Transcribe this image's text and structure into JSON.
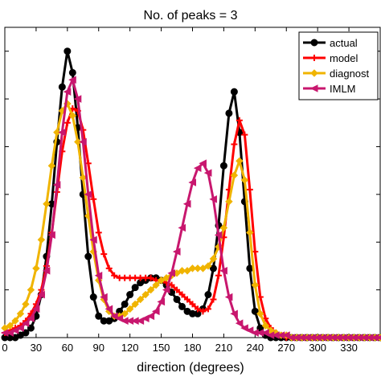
{
  "chart_data": {
    "type": "line",
    "title": "No. of peaks = 3",
    "xlabel": "direction (degrees)",
    "ylabel": "",
    "xlim": [
      0,
      360
    ],
    "ylim": [
      0,
      1.3
    ],
    "xticks": [
      "0",
      "30",
      "60",
      "90",
      "120",
      "150",
      "180",
      "210",
      "240",
      "270",
      "300",
      "330"
    ],
    "xtick_values": [
      0,
      30,
      60,
      90,
      120,
      150,
      180,
      210,
      240,
      270,
      300,
      330
    ],
    "legend_position": "top-right",
    "grid": false,
    "series": [
      {
        "name": "actual",
        "color": "#000000",
        "marker": "circle",
        "x": [
          0,
          5,
          10,
          15,
          20,
          25,
          30,
          35,
          40,
          45,
          50,
          55,
          60,
          65,
          70,
          75,
          80,
          85,
          90,
          95,
          100,
          105,
          110,
          115,
          120,
          125,
          130,
          135,
          140,
          145,
          150,
          155,
          160,
          165,
          170,
          175,
          180,
          185,
          190,
          195,
          200,
          205,
          210,
          215,
          220,
          225,
          230,
          235,
          240,
          245,
          250,
          255,
          260,
          265,
          270,
          275,
          280,
          285,
          290,
          295,
          300,
          305,
          310,
          315,
          320,
          325,
          330,
          335,
          340,
          345,
          350,
          355,
          360
        ],
        "y": [
          0.0,
          0.0,
          0.0,
          0.01,
          0.02,
          0.04,
          0.09,
          0.18,
          0.34,
          0.56,
          0.82,
          1.05,
          1.2,
          1.11,
          0.88,
          0.6,
          0.34,
          0.17,
          0.09,
          0.07,
          0.07,
          0.08,
          0.11,
          0.14,
          0.18,
          0.21,
          0.23,
          0.24,
          0.25,
          0.25,
          0.24,
          0.22,
          0.19,
          0.16,
          0.13,
          0.11,
          0.1,
          0.1,
          0.12,
          0.18,
          0.29,
          0.47,
          0.72,
          0.94,
          1.03,
          0.86,
          0.57,
          0.29,
          0.11,
          0.04,
          0.01,
          0.0,
          0.0,
          0.0,
          0.0,
          0.0,
          0.0,
          0.0,
          0.0,
          0.0,
          0.0,
          0.0,
          0.0,
          0.0,
          0.0,
          0.0,
          0.0,
          0.0,
          0.0,
          0.0,
          0.0,
          0.0,
          0.0
        ]
      },
      {
        "name": "model",
        "color": "#ff0000",
        "marker": "plus",
        "x": [
          0,
          5,
          10,
          15,
          20,
          25,
          30,
          35,
          40,
          45,
          50,
          55,
          60,
          65,
          70,
          75,
          80,
          85,
          90,
          95,
          100,
          105,
          110,
          115,
          120,
          125,
          130,
          135,
          140,
          145,
          150,
          155,
          160,
          165,
          170,
          175,
          180,
          185,
          190,
          195,
          200,
          205,
          210,
          215,
          220,
          225,
          230,
          235,
          240,
          245,
          250,
          255,
          260,
          265,
          270,
          275,
          280,
          285,
          290,
          295,
          300,
          305,
          310,
          315,
          320,
          325,
          330,
          335,
          340,
          345,
          350,
          355,
          360
        ],
        "y": [
          0.02,
          0.03,
          0.04,
          0.05,
          0.07,
          0.1,
          0.14,
          0.2,
          0.3,
          0.44,
          0.61,
          0.78,
          0.9,
          0.96,
          0.95,
          0.87,
          0.73,
          0.58,
          0.44,
          0.35,
          0.29,
          0.26,
          0.25,
          0.25,
          0.25,
          0.25,
          0.25,
          0.25,
          0.25,
          0.24,
          0.24,
          0.23,
          0.22,
          0.2,
          0.18,
          0.16,
          0.14,
          0.12,
          0.11,
          0.12,
          0.16,
          0.26,
          0.42,
          0.62,
          0.81,
          0.91,
          0.85,
          0.62,
          0.36,
          0.17,
          0.08,
          0.04,
          0.02,
          0.01,
          0.0,
          0.0,
          0.0,
          0.0,
          0.0,
          0.0,
          0.0,
          0.0,
          0.0,
          0.0,
          0.0,
          0.0,
          0.0,
          0.0,
          0.0,
          0.0,
          0.0,
          0.0,
          0.0
        ]
      },
      {
        "name": "diagnost",
        "color": "#f0b400",
        "marker": "diamond",
        "x": [
          0,
          5,
          10,
          15,
          20,
          25,
          30,
          35,
          40,
          45,
          50,
          55,
          60,
          65,
          70,
          75,
          80,
          85,
          90,
          95,
          100,
          105,
          110,
          115,
          120,
          125,
          130,
          135,
          140,
          145,
          150,
          155,
          160,
          165,
          170,
          175,
          180,
          185,
          190,
          195,
          200,
          205,
          210,
          215,
          220,
          225,
          230,
          235,
          240,
          245,
          250,
          255,
          260,
          265,
          270,
          275,
          280,
          285,
          290,
          295,
          300,
          305,
          310,
          315,
          320,
          325,
          330,
          335,
          340,
          345,
          350,
          355,
          360
        ],
        "y": [
          0.04,
          0.05,
          0.07,
          0.1,
          0.14,
          0.2,
          0.29,
          0.41,
          0.56,
          0.72,
          0.86,
          0.95,
          0.98,
          0.93,
          0.82,
          0.67,
          0.51,
          0.36,
          0.24,
          0.16,
          0.11,
          0.09,
          0.09,
          0.1,
          0.12,
          0.14,
          0.16,
          0.18,
          0.2,
          0.22,
          0.24,
          0.25,
          0.26,
          0.27,
          0.28,
          0.28,
          0.29,
          0.29,
          0.29,
          0.3,
          0.33,
          0.38,
          0.46,
          0.57,
          0.68,
          0.74,
          0.66,
          0.44,
          0.22,
          0.1,
          0.05,
          0.03,
          0.02,
          0.01,
          0.01,
          0.0,
          0.0,
          0.0,
          0.0,
          0.0,
          0.0,
          0.0,
          0.0,
          0.0,
          0.0,
          0.0,
          0.0,
          0.0,
          0.0,
          0.0,
          0.0,
          0.0,
          0.0
        ]
      },
      {
        "name": "IMLM",
        "color": "#c8176e",
        "marker": "leftTriangle",
        "x": [
          0,
          5,
          10,
          15,
          20,
          25,
          30,
          35,
          40,
          45,
          50,
          55,
          60,
          65,
          70,
          75,
          80,
          85,
          90,
          95,
          100,
          105,
          110,
          115,
          120,
          125,
          130,
          135,
          140,
          145,
          150,
          155,
          160,
          165,
          170,
          175,
          180,
          185,
          190,
          195,
          200,
          205,
          210,
          215,
          220,
          225,
          230,
          235,
          240,
          245,
          250,
          255,
          260,
          265,
          270,
          275,
          280,
          285,
          290,
          295,
          300,
          305,
          310,
          315,
          320,
          325,
          330,
          335,
          340,
          345,
          350,
          355,
          360
        ],
        "y": [
          0.02,
          0.02,
          0.03,
          0.04,
          0.06,
          0.08,
          0.12,
          0.18,
          0.28,
          0.43,
          0.64,
          0.86,
          1.03,
          1.08,
          1.0,
          0.82,
          0.6,
          0.41,
          0.26,
          0.17,
          0.12,
          0.09,
          0.08,
          0.07,
          0.07,
          0.07,
          0.07,
          0.08,
          0.09,
          0.11,
          0.15,
          0.2,
          0.27,
          0.36,
          0.46,
          0.56,
          0.65,
          0.71,
          0.73,
          0.69,
          0.58,
          0.43,
          0.28,
          0.17,
          0.1,
          0.06,
          0.04,
          0.03,
          0.02,
          0.02,
          0.02,
          0.01,
          0.01,
          0.01,
          0.01,
          0.0,
          0.0,
          0.0,
          0.0,
          0.0,
          0.0,
          0.0,
          0.0,
          0.0,
          0.0,
          0.0,
          0.0,
          0.0,
          0.0,
          0.0,
          0.0,
          0.0,
          0.0
        ]
      }
    ]
  }
}
